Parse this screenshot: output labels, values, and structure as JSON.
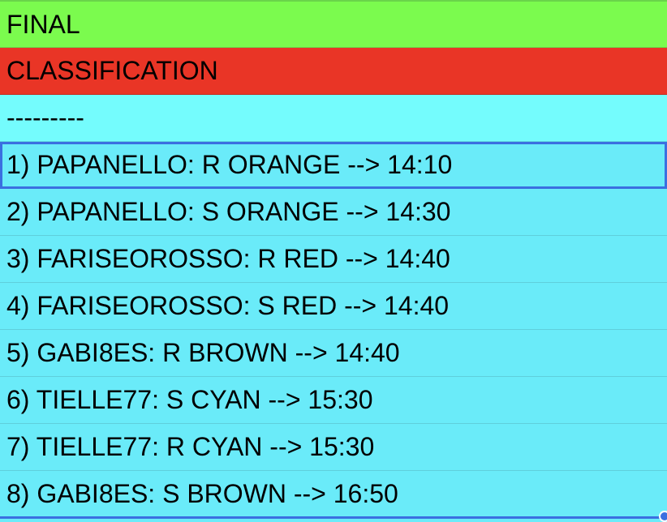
{
  "colors": {
    "header_green": "#7bfb4e",
    "header_red": "#e93526",
    "separator_cyan": "#74fcfd",
    "row_cyan": "#6aebf9",
    "selection_blue": "#3a6fe0"
  },
  "cells": {
    "title1": "FINAL",
    "title2": "CLASSIFICATION",
    "separator": "---------",
    "rows": [
      "1) PAPANELLO: R ORANGE --> 14:10",
      "2) PAPANELLO: S ORANGE --> 14:30",
      "3) FARISEOROSSO: R RED --> 14:40",
      "4) FARISEOROSSO: S RED --> 14:40",
      "5) GABI8ES: R BROWN --> 14:40",
      "6) TIELLE77: S CYAN --> 15:30",
      "7) TIELLE77: R CYAN --> 15:30",
      "8) GABI8ES: S BROWN --> 16:50"
    ]
  }
}
